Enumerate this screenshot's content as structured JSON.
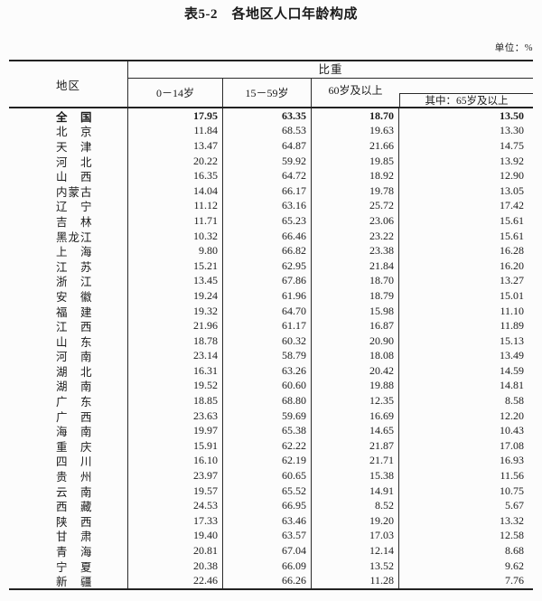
{
  "page": {
    "title": "表5-2　各地区人口年龄构成",
    "unit_label": "单位：%"
  },
  "table": {
    "region_header": "地区",
    "group_header": "比重",
    "col_headers": [
      "0－14岁",
      "15－59岁",
      "60岁及以上"
    ],
    "sub_col_header": "其中：65岁及以上",
    "rows": [
      {
        "region": "全　国",
        "age_0_14": "17.95",
        "age_15_59": "63.35",
        "age_60_plus": "18.70",
        "age_65_plus": "13.50",
        "bold": true
      },
      {
        "region": "北　京",
        "age_0_14": "11.84",
        "age_15_59": "68.53",
        "age_60_plus": "19.63",
        "age_65_plus": "13.30",
        "bold": false
      },
      {
        "region": "天　津",
        "age_0_14": "13.47",
        "age_15_59": "64.87",
        "age_60_plus": "21.66",
        "age_65_plus": "14.75",
        "bold": false
      },
      {
        "region": "河　北",
        "age_0_14": "20.22",
        "age_15_59": "59.92",
        "age_60_plus": "19.85",
        "age_65_plus": "13.92",
        "bold": false
      },
      {
        "region": "山　西",
        "age_0_14": "16.35",
        "age_15_59": "64.72",
        "age_60_plus": "18.92",
        "age_65_plus": "12.90",
        "bold": false
      },
      {
        "region": "内蒙古",
        "age_0_14": "14.04",
        "age_15_59": "66.17",
        "age_60_plus": "19.78",
        "age_65_plus": "13.05",
        "bold": false
      },
      {
        "region": "辽　宁",
        "age_0_14": "11.12",
        "age_15_59": "63.16",
        "age_60_plus": "25.72",
        "age_65_plus": "17.42",
        "bold": false
      },
      {
        "region": "吉　林",
        "age_0_14": "11.71",
        "age_15_59": "65.23",
        "age_60_plus": "23.06",
        "age_65_plus": "15.61",
        "bold": false
      },
      {
        "region": "黑龙江",
        "age_0_14": "10.32",
        "age_15_59": "66.46",
        "age_60_plus": "23.22",
        "age_65_plus": "15.61",
        "bold": false
      },
      {
        "region": "上　海",
        "age_0_14": "9.80",
        "age_15_59": "66.82",
        "age_60_plus": "23.38",
        "age_65_plus": "16.28",
        "bold": false
      },
      {
        "region": "江　苏",
        "age_0_14": "15.21",
        "age_15_59": "62.95",
        "age_60_plus": "21.84",
        "age_65_plus": "16.20",
        "bold": false
      },
      {
        "region": "浙　江",
        "age_0_14": "13.45",
        "age_15_59": "67.86",
        "age_60_plus": "18.70",
        "age_65_plus": "13.27",
        "bold": false
      },
      {
        "region": "安　徽",
        "age_0_14": "19.24",
        "age_15_59": "61.96",
        "age_60_plus": "18.79",
        "age_65_plus": "15.01",
        "bold": false
      },
      {
        "region": "福　建",
        "age_0_14": "19.32",
        "age_15_59": "64.70",
        "age_60_plus": "15.98",
        "age_65_plus": "11.10",
        "bold": false
      },
      {
        "region": "江　西",
        "age_0_14": "21.96",
        "age_15_59": "61.17",
        "age_60_plus": "16.87",
        "age_65_plus": "11.89",
        "bold": false
      },
      {
        "region": "山　东",
        "age_0_14": "18.78",
        "age_15_59": "60.32",
        "age_60_plus": "20.90",
        "age_65_plus": "15.13",
        "bold": false
      },
      {
        "region": "河　南",
        "age_0_14": "23.14",
        "age_15_59": "58.79",
        "age_60_plus": "18.08",
        "age_65_plus": "13.49",
        "bold": false
      },
      {
        "region": "湖　北",
        "age_0_14": "16.31",
        "age_15_59": "63.26",
        "age_60_plus": "20.42",
        "age_65_plus": "14.59",
        "bold": false
      },
      {
        "region": "湖　南",
        "age_0_14": "19.52",
        "age_15_59": "60.60",
        "age_60_plus": "19.88",
        "age_65_plus": "14.81",
        "bold": false
      },
      {
        "region": "广　东",
        "age_0_14": "18.85",
        "age_15_59": "68.80",
        "age_60_plus": "12.35",
        "age_65_plus": "8.58",
        "bold": false
      },
      {
        "region": "广　西",
        "age_0_14": "23.63",
        "age_15_59": "59.69",
        "age_60_plus": "16.69",
        "age_65_plus": "12.20",
        "bold": false
      },
      {
        "region": "海　南",
        "age_0_14": "19.97",
        "age_15_59": "65.38",
        "age_60_plus": "14.65",
        "age_65_plus": "10.43",
        "bold": false
      },
      {
        "region": "重　庆",
        "age_0_14": "15.91",
        "age_15_59": "62.22",
        "age_60_plus": "21.87",
        "age_65_plus": "17.08",
        "bold": false
      },
      {
        "region": "四　川",
        "age_0_14": "16.10",
        "age_15_59": "62.19",
        "age_60_plus": "21.71",
        "age_65_plus": "16.93",
        "bold": false
      },
      {
        "region": "贵　州",
        "age_0_14": "23.97",
        "age_15_59": "60.65",
        "age_60_plus": "15.38",
        "age_65_plus": "11.56",
        "bold": false
      },
      {
        "region": "云　南",
        "age_0_14": "19.57",
        "age_15_59": "65.52",
        "age_60_plus": "14.91",
        "age_65_plus": "10.75",
        "bold": false
      },
      {
        "region": "西　藏",
        "age_0_14": "24.53",
        "age_15_59": "66.95",
        "age_60_plus": "8.52",
        "age_65_plus": "5.67",
        "bold": false
      },
      {
        "region": "陕　西",
        "age_0_14": "17.33",
        "age_15_59": "63.46",
        "age_60_plus": "19.20",
        "age_65_plus": "13.32",
        "bold": false
      },
      {
        "region": "甘　肃",
        "age_0_14": "19.40",
        "age_15_59": "63.57",
        "age_60_plus": "17.03",
        "age_65_plus": "12.58",
        "bold": false
      },
      {
        "region": "青　海",
        "age_0_14": "20.81",
        "age_15_59": "67.04",
        "age_60_plus": "12.14",
        "age_65_plus": "8.68",
        "bold": false
      },
      {
        "region": "宁　夏",
        "age_0_14": "20.38",
        "age_15_59": "66.09",
        "age_60_plus": "13.52",
        "age_65_plus": "9.62",
        "bold": false
      },
      {
        "region": "新　疆",
        "age_0_14": "22.46",
        "age_15_59": "66.26",
        "age_60_plus": "11.28",
        "age_65_plus": "7.76",
        "bold": false
      }
    ]
  },
  "colors": {
    "text": "#1b1b1b",
    "line": "#2a2a2a",
    "background": "#fcfcfc"
  }
}
